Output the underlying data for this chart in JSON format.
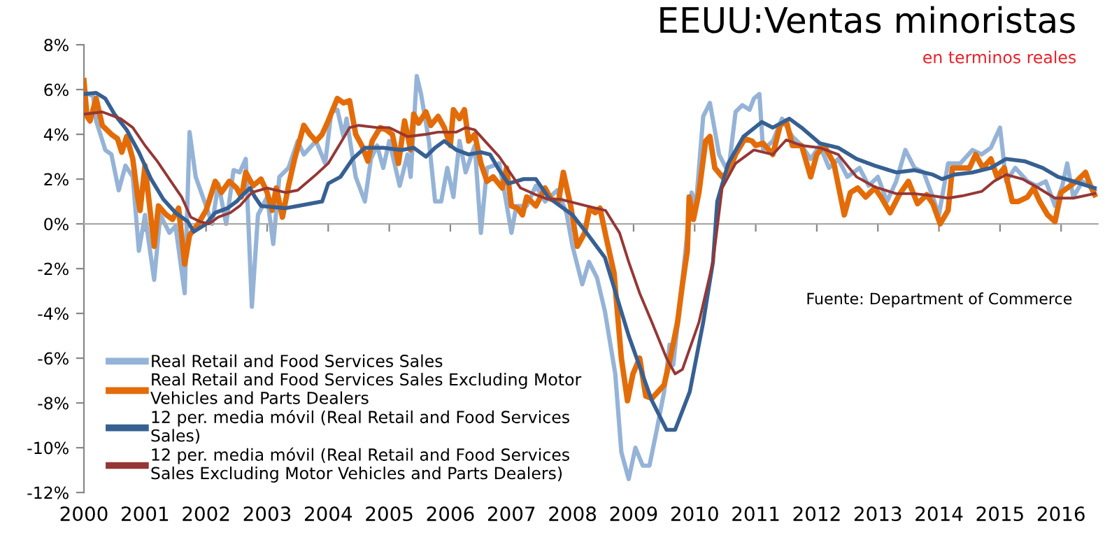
{
  "chart_data": {
    "type": "line",
    "title": "EEUU:Ventas minoristas",
    "subtitle": "en terminos reales",
    "annotations": [
      "Fuente: Department of Commerce"
    ],
    "legend": "bottom left",
    "xlim": [
      2000,
      2016.6
    ],
    "xticks": [
      2000,
      2001,
      2002,
      2003,
      2004,
      2005,
      2006,
      2007,
      2008,
      2009,
      2010,
      2011,
      2012,
      2013,
      2014,
      2015,
      2016
    ],
    "ylim": [
      -12,
      8
    ],
    "yticks": [
      {
        "value": -12,
        "label": "-12%"
      },
      {
        "value": -10,
        "label": "-10%"
      },
      {
        "value": -8,
        "label": "-8%"
      },
      {
        "value": -6,
        "label": "-6%"
      },
      {
        "value": -4,
        "label": "-4%"
      },
      {
        "value": -2,
        "label": "-2%"
      },
      {
        "value": 0,
        "label": "0%"
      },
      {
        "value": 2,
        "label": "2%"
      },
      {
        "value": 4,
        "label": "4%"
      },
      {
        "value": 6,
        "label": "6%"
      },
      {
        "value": 8,
        "label": "8%"
      }
    ],
    "series": [
      {
        "name": "Real Retail and Food Services Sales",
        "color": "#95b3d7",
        "x": [
          2000.0,
          2000.15,
          2000.2,
          2000.35,
          2000.45,
          2000.57,
          2000.68,
          2000.8,
          2000.9,
          2001.0,
          2001.15,
          2001.25,
          2001.4,
          2001.5,
          2001.65,
          2001.73,
          2001.83,
          2002.0,
          2002.1,
          2002.2,
          2002.33,
          2002.45,
          2002.55,
          2002.65,
          2002.75,
          2002.85,
          2003.0,
          2003.1,
          2003.2,
          2003.35,
          2003.5,
          2003.6,
          2003.8,
          2003.95,
          2004.05,
          2004.15,
          2004.25,
          2004.3,
          2004.45,
          2004.6,
          2004.7,
          2004.8,
          2004.9,
          2005.0,
          2005.17,
          2005.3,
          2005.35,
          2005.45,
          2005.52,
          2005.65,
          2005.75,
          2005.85,
          2005.95,
          2006.05,
          2006.15,
          2006.25,
          2006.4,
          2006.5,
          2006.6,
          2006.8,
          2006.9,
          2007.0,
          2007.08,
          2007.25,
          2007.4,
          2007.55,
          2007.75,
          2007.9,
          2008.0,
          2008.16,
          2008.27,
          2008.4,
          2008.53,
          2008.7,
          2008.8,
          2008.92,
          2009.03,
          2009.15,
          2009.26,
          2009.38,
          2009.5,
          2009.59,
          2009.65,
          2009.8,
          2009.95,
          2010.02,
          2010.14,
          2010.25,
          2010.4,
          2010.55,
          2010.67,
          2010.78,
          2010.9,
          2010.97,
          2011.06,
          2011.12,
          2011.28,
          2011.43,
          2011.6,
          2011.75,
          2011.9,
          2012.05,
          2012.2,
          2012.35,
          2012.5,
          2012.7,
          2012.85,
          2013.0,
          2013.15,
          2013.3,
          2013.45,
          2013.6,
          2013.75,
          2013.9,
          2014.0,
          2014.15,
          2014.35,
          2014.55,
          2014.7,
          2014.85,
          2015.0,
          2015.1,
          2015.25,
          2015.45,
          2015.6,
          2015.75,
          2015.9,
          2016.02,
          2016.1,
          2016.2,
          2016.35,
          2016.55
        ],
        "values": [
          5.9,
          5.7,
          4.6,
          3.3,
          3.1,
          1.5,
          2.6,
          2.1,
          -1.2,
          0.4,
          -2.5,
          0.4,
          -0.4,
          -0.1,
          -3.1,
          4.1,
          2.1,
          0.8,
          0.0,
          1.8,
          0.0,
          2.4,
          2.3,
          2.9,
          -3.7,
          0.4,
          1.2,
          -0.9,
          2.1,
          2.5,
          3.7,
          3.1,
          3.7,
          2.7,
          5.0,
          5.1,
          3.9,
          4.7,
          2.1,
          1.0,
          2.9,
          3.5,
          2.5,
          3.7,
          1.7,
          3.1,
          2.1,
          6.6,
          5.8,
          3.7,
          1.0,
          1.0,
          2.5,
          1.2,
          3.7,
          2.3,
          3.5,
          -0.4,
          2.5,
          2.7,
          1.2,
          -0.4,
          0.8,
          0.8,
          1.7,
          1.0,
          1.5,
          0.5,
          -1.0,
          -2.7,
          -1.7,
          -2.4,
          -3.9,
          -6.7,
          -10.2,
          -11.4,
          -10.0,
          -10.8,
          -10.8,
          -9.2,
          -7.5,
          -5.4,
          -6.3,
          -2.5,
          1.4,
          0.8,
          4.8,
          5.4,
          3.1,
          2.3,
          5.0,
          5.3,
          5.1,
          5.6,
          5.8,
          3.3,
          3.7,
          4.7,
          3.9,
          3.5,
          2.9,
          3.5,
          2.5,
          2.9,
          2.1,
          2.5,
          1.7,
          2.1,
          1.0,
          1.9,
          3.3,
          2.5,
          2.3,
          1.2,
          0.4,
          2.7,
          2.7,
          3.3,
          3.1,
          3.4,
          4.3,
          1.9,
          2.5,
          1.9,
          1.7,
          1.9,
          0.8,
          1.7,
          2.7,
          1.2,
          1.9,
          1.5
        ]
      },
      {
        "name": "Real Retail and Food Services Sales Excluding Motor Vehicles and Parts Dealers",
        "color": "#e36c09",
        "x": [
          2000.0,
          2000.05,
          2000.1,
          2000.2,
          2000.3,
          2000.45,
          2000.55,
          2000.62,
          2000.7,
          2000.8,
          2000.88,
          2000.92,
          2001.0,
          2001.15,
          2001.22,
          2001.35,
          2001.45,
          2001.55,
          2001.65,
          2001.73,
          2001.87,
          2002.0,
          2002.15,
          2002.25,
          2002.38,
          2002.5,
          2002.58,
          2002.65,
          2002.77,
          2002.9,
          2003.0,
          2003.08,
          2003.15,
          2003.25,
          2003.35,
          2003.45,
          2003.6,
          2003.7,
          2003.8,
          2003.9,
          2004.0,
          2004.15,
          2004.25,
          2004.35,
          2004.45,
          2004.55,
          2004.65,
          2004.72,
          2004.85,
          2004.95,
          2005.05,
          2005.15,
          2005.25,
          2005.35,
          2005.4,
          2005.48,
          2005.6,
          2005.68,
          2005.8,
          2005.9,
          2006.0,
          2006.05,
          2006.15,
          2006.23,
          2006.3,
          2006.4,
          2006.5,
          2006.6,
          2006.7,
          2006.85,
          2006.92,
          2007.0,
          2007.1,
          2007.18,
          2007.25,
          2007.4,
          2007.55,
          2007.65,
          2007.77,
          2007.85,
          2007.97,
          2008.08,
          2008.2,
          2008.28,
          2008.37,
          2008.45,
          2008.55,
          2008.68,
          2008.8,
          2008.9,
          2008.99,
          2009.1,
          2009.2,
          2009.3,
          2009.5,
          2009.6,
          2009.72,
          2009.8,
          2009.88,
          2009.91,
          2009.98,
          2010.07,
          2010.18,
          2010.25,
          2010.33,
          2010.45,
          2010.55,
          2010.67,
          2010.82,
          2010.94,
          2011.0,
          2011.12,
          2011.28,
          2011.4,
          2011.5,
          2011.6,
          2011.75,
          2011.9,
          2012.0,
          2012.12,
          2012.28,
          2012.45,
          2012.55,
          2012.67,
          2012.8,
          2012.95,
          2013.05,
          2013.2,
          2013.35,
          2013.5,
          2013.65,
          2013.8,
          2013.9,
          2014.02,
          2014.15,
          2014.22,
          2014.38,
          2014.5,
          2014.6,
          2014.72,
          2014.85,
          2014.95,
          2015.07,
          2015.2,
          2015.3,
          2015.45,
          2015.55,
          2015.65,
          2015.78,
          2015.9,
          2016.0,
          2016.1,
          2016.25,
          2016.4,
          2016.48,
          2016.55
        ],
        "values": [
          6.4,
          4.8,
          4.6,
          5.6,
          4.4,
          4.0,
          3.8,
          3.2,
          3.9,
          2.9,
          1.2,
          0.6,
          2.6,
          -1.0,
          0.8,
          0.4,
          0.2,
          0.7,
          -1.8,
          -0.5,
          0.0,
          0.6,
          1.9,
          1.4,
          1.9,
          1.6,
          1.2,
          2.3,
          1.7,
          2.0,
          1.4,
          0.6,
          1.6,
          0.3,
          1.7,
          2.9,
          4.4,
          4.0,
          3.7,
          4.0,
          4.6,
          5.6,
          5.4,
          5.5,
          4.0,
          3.5,
          2.8,
          3.7,
          4.3,
          4.2,
          4.0,
          2.7,
          4.6,
          3.3,
          4.9,
          4.5,
          5.0,
          4.4,
          4.8,
          4.3,
          3.5,
          5.1,
          4.7,
          5.1,
          3.7,
          4.0,
          2.7,
          1.9,
          2.1,
          1.6,
          2.5,
          0.8,
          0.7,
          0.4,
          1.2,
          0.8,
          1.6,
          1.1,
          1.0,
          2.3,
          0.8,
          -1.0,
          -0.4,
          0.7,
          0.5,
          0.7,
          -0.6,
          -2.2,
          -6.0,
          -7.9,
          -6.7,
          -6.0,
          -7.7,
          -7.8,
          -7.2,
          -6.0,
          -4.4,
          -2.7,
          -1.2,
          1.2,
          0.2,
          1.4,
          3.7,
          3.9,
          2.5,
          2.1,
          2.3,
          3.1,
          3.8,
          3.7,
          3.5,
          3.6,
          3.1,
          4.4,
          4.6,
          3.5,
          3.5,
          2.1,
          3.1,
          3.5,
          2.7,
          0.4,
          1.4,
          1.6,
          1.2,
          1.6,
          1.2,
          0.5,
          1.3,
          1.9,
          0.9,
          1.3,
          0.9,
          0.0,
          0.6,
          2.5,
          2.5,
          2.5,
          3.1,
          2.5,
          2.9,
          2.1,
          2.5,
          1.0,
          1.0,
          1.2,
          1.6,
          1.0,
          0.4,
          0.1,
          1.4,
          1.6,
          1.9,
          2.3,
          1.7,
          1.3
        ]
      },
      {
        "name": "12 per. media móvil (Real Retail and Food Services Sales)",
        "color": "#376092",
        "x": [
          2000.0,
          2000.2,
          2000.35,
          2000.5,
          2000.7,
          2000.9,
          2001.1,
          2001.3,
          2001.5,
          2001.7,
          2001.8,
          2002.0,
          2002.15,
          2002.35,
          2002.5,
          2002.6,
          2002.72,
          2002.8,
          2002.9,
          2003.1,
          2003.3,
          2003.5,
          2003.7,
          2003.9,
          2004.0,
          2004.2,
          2004.4,
          2004.6,
          2004.9,
          2005.2,
          2005.4,
          2005.6,
          2005.75,
          2005.9,
          2006.1,
          2006.3,
          2006.5,
          2006.65,
          2006.8,
          2006.95,
          2007.2,
          2007.4,
          2007.6,
          2007.8,
          2008.0,
          2008.23,
          2008.53,
          2008.92,
          2009.3,
          2009.54,
          2009.68,
          2009.92,
          2010.14,
          2010.3,
          2010.37,
          2010.55,
          2010.8,
          2011.1,
          2011.28,
          2011.55,
          2011.75,
          2012.05,
          2012.35,
          2012.65,
          2012.95,
          2013.3,
          2013.6,
          2013.9,
          2014.05,
          2014.25,
          2014.55,
          2014.85,
          2015.1,
          2015.4,
          2015.7,
          2015.95,
          2016.2,
          2016.55
        ],
        "values": [
          5.8,
          5.85,
          5.6,
          4.9,
          4.2,
          3.2,
          2.0,
          1.1,
          0.5,
          0.1,
          -0.35,
          0.0,
          0.5,
          0.7,
          1.0,
          1.3,
          1.6,
          1.2,
          0.8,
          0.75,
          0.7,
          0.8,
          0.9,
          1.0,
          1.8,
          2.1,
          2.9,
          3.4,
          3.4,
          3.3,
          3.4,
          3.0,
          3.4,
          3.7,
          3.3,
          3.1,
          3.2,
          3.1,
          2.4,
          1.8,
          2.0,
          2.0,
          1.2,
          0.8,
          0.4,
          -0.4,
          -1.5,
          -5.0,
          -7.9,
          -9.2,
          -9.2,
          -7.5,
          -4.4,
          -1.7,
          1.0,
          2.7,
          3.9,
          4.55,
          4.3,
          4.7,
          4.3,
          3.6,
          3.4,
          2.9,
          2.6,
          2.3,
          2.4,
          2.2,
          2.0,
          2.2,
          2.3,
          2.5,
          2.9,
          2.8,
          2.5,
          2.1,
          1.9,
          1.6
        ]
      },
      {
        "name": "12 per. media móvil (Real Retail and Food Services Sales Excluding Motor Vehicles and Parts Dealers)",
        "color": "#953735",
        "x": [
          2000.0,
          2000.3,
          2000.6,
          2000.8,
          2001.0,
          2001.2,
          2001.4,
          2001.6,
          2001.75,
          2001.9,
          2002.05,
          2002.2,
          2002.4,
          2002.55,
          2002.75,
          2003.0,
          2003.3,
          2003.5,
          2003.8,
          2004.0,
          2004.2,
          2004.35,
          2004.5,
          2004.8,
          2005.0,
          2005.3,
          2005.6,
          2005.8,
          2006.1,
          2006.25,
          2006.4,
          2006.6,
          2006.8,
          2007.0,
          2007.15,
          2007.4,
          2007.6,
          2007.8,
          2008.23,
          2008.54,
          2008.77,
          2008.92,
          2009.1,
          2009.3,
          2009.54,
          2009.68,
          2009.8,
          2010.07,
          2010.3,
          2010.45,
          2010.67,
          2010.97,
          2011.28,
          2011.5,
          2011.75,
          2012.05,
          2012.35,
          2012.65,
          2012.95,
          2013.3,
          2013.6,
          2013.9,
          2014.15,
          2014.38,
          2014.7,
          2014.9,
          2015.1,
          2015.37,
          2015.6,
          2015.9,
          2016.2,
          2016.55
        ],
        "values": [
          4.9,
          5.0,
          4.7,
          4.3,
          3.5,
          2.8,
          2.0,
          1.2,
          0.3,
          0.1,
          0.0,
          0.3,
          0.5,
          0.8,
          1.4,
          1.6,
          1.4,
          1.5,
          2.2,
          2.7,
          3.6,
          4.3,
          4.4,
          4.3,
          4.3,
          3.9,
          4.0,
          4.1,
          4.1,
          4.3,
          4.2,
          3.6,
          3.0,
          2.2,
          1.6,
          1.3,
          1.1,
          1.1,
          0.8,
          0.6,
          -0.4,
          -1.7,
          -3.1,
          -4.4,
          -6.0,
          -6.7,
          -6.5,
          -4.4,
          -1.7,
          1.6,
          2.7,
          3.3,
          3.1,
          3.75,
          3.5,
          3.4,
          3.1,
          2.1,
          1.65,
          1.35,
          1.35,
          1.25,
          1.15,
          1.25,
          1.45,
          1.9,
          2.2,
          2.0,
          1.65,
          1.15,
          1.15,
          1.35
        ]
      }
    ]
  }
}
